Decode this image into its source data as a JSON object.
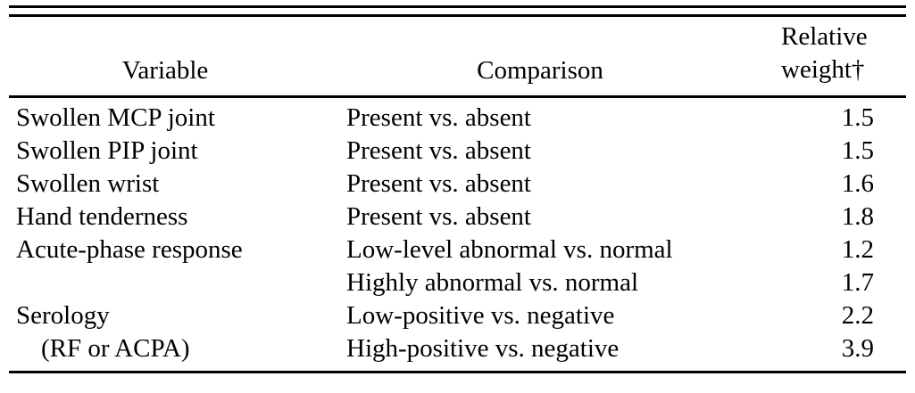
{
  "table": {
    "headers": {
      "variable": "Variable",
      "comparison": "Comparison",
      "relative_weight": "Relative weight†"
    },
    "rows": [
      {
        "variable": "Swollen MCP joint",
        "comparison": "Present vs. absent",
        "weight": "1.5"
      },
      {
        "variable": "Swollen PIP joint",
        "comparison": "Present vs. absent",
        "weight": "1.5"
      },
      {
        "variable": "Swollen wrist",
        "comparison": "Present vs. absent",
        "weight": "1.6"
      },
      {
        "variable": "Hand tenderness",
        "comparison": "Present vs. absent",
        "weight": "1.8"
      },
      {
        "variable": "Acute-phase response",
        "comparison": "Low-level abnormal vs. normal",
        "weight": "1.2"
      },
      {
        "variable": "",
        "comparison": "Highly abnormal vs. normal",
        "weight": "1.7"
      },
      {
        "variable": "Serology",
        "comparison": "Low-positive vs. negative",
        "weight": "2.2"
      },
      {
        "variable": "(RF or ACPA)",
        "comparison": "High-positive vs. negative",
        "weight": "3.9"
      }
    ],
    "colors": {
      "text": "#000000",
      "background": "#ffffff",
      "rule": "#000000"
    }
  }
}
